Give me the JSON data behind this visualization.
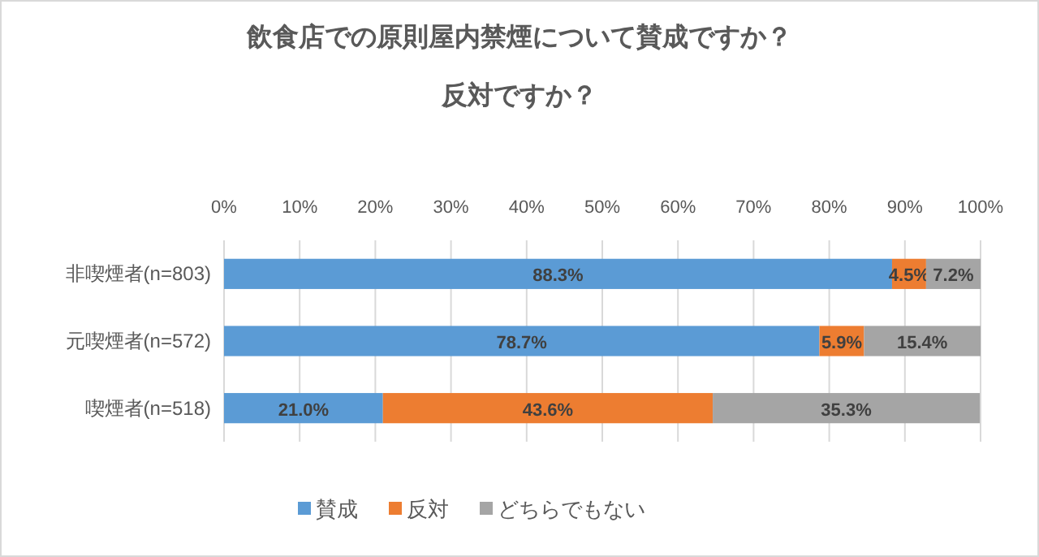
{
  "chart_data": {
    "type": "bar",
    "orientation": "horizontal",
    "stacked": true,
    "title": "飲食店での原則屋内禁煙について賛成ですか？",
    "subtitle": "反対ですか？",
    "categories": [
      "非喫煙者(n=803)",
      "元喫煙者(n=572)",
      "喫煙者(n=518)"
    ],
    "series": [
      {
        "name": "賛成",
        "color": "#5b9bd5",
        "values": [
          88.3,
          78.7,
          21.0
        ],
        "value_labels": [
          "88.3%",
          "78.7%",
          "21.0%"
        ]
      },
      {
        "name": "反対",
        "color": "#ed7d31",
        "values": [
          4.5,
          5.9,
          43.6
        ],
        "value_labels": [
          "4.5%",
          "5.9%",
          "43.6%"
        ]
      },
      {
        "name": "どちらでもない",
        "color": "#a5a5a5",
        "values": [
          7.2,
          15.4,
          35.3
        ],
        "value_labels": [
          "7.2%",
          "15.4%",
          "35.3%"
        ]
      }
    ],
    "xlim": [
      0,
      100
    ],
    "xticks": [
      {
        "value": 0,
        "label": "0%"
      },
      {
        "value": 10,
        "label": "10%"
      },
      {
        "value": 20,
        "label": "20%"
      },
      {
        "value": 30,
        "label": "30%"
      },
      {
        "value": 40,
        "label": "40%"
      },
      {
        "value": 50,
        "label": "50%"
      },
      {
        "value": 60,
        "label": "60%"
      },
      {
        "value": 70,
        "label": "70%"
      },
      {
        "value": 80,
        "label": "80%"
      },
      {
        "value": 90,
        "label": "90%"
      },
      {
        "value": 100,
        "label": "100%"
      }
    ],
    "grid": "x",
    "legend": "bottom"
  }
}
